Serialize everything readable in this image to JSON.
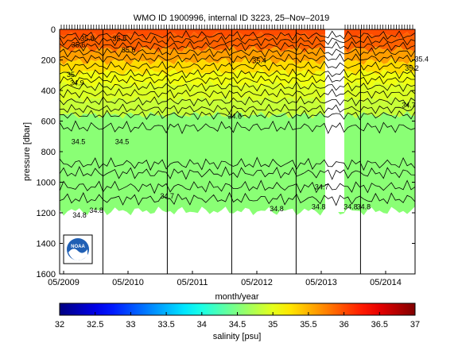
{
  "chart_data": {
    "type": "heatmap",
    "title": "WMO ID 1900996, internal ID 3223, 25–Nov–2019",
    "xlabel": "month/year",
    "ylabel": "pressure [dbar]",
    "x_ticks": [
      "05/2009",
      "05/2010",
      "05/2011",
      "05/2012",
      "05/2013",
      "05/2014"
    ],
    "y_ticks": [
      0,
      200,
      400,
      600,
      800,
      1000,
      1200,
      1400,
      1600
    ],
    "ylim": [
      0,
      1600
    ],
    "y_reversed": true,
    "colorbar": {
      "label": "salinity [psu]",
      "range": [
        32,
        37
      ],
      "ticks": [
        32,
        32.5,
        33,
        33.5,
        34,
        34.5,
        35,
        35.5,
        36,
        36.5,
        37
      ]
    },
    "salinity_layers": [
      {
        "pmin": 0,
        "pmax": 40,
        "value": 36.0
      },
      {
        "pmin": 40,
        "pmax": 130,
        "value": 35.9
      },
      {
        "pmin": 130,
        "pmax": 210,
        "value": 35.6
      },
      {
        "pmin": 210,
        "pmax": 280,
        "value": 35.3
      },
      {
        "pmin": 280,
        "pmax": 360,
        "value": 35.05
      },
      {
        "pmin": 360,
        "pmax": 460,
        "value": 34.95
      },
      {
        "pmin": 460,
        "pmax": 560,
        "value": 34.85
      },
      {
        "pmin": 560,
        "pmax": 1230,
        "value": 34.55
      }
    ],
    "contour_labels": [
      {
        "text": "35.8",
        "x": 0.26,
        "p": 60
      },
      {
        "text": "35.8",
        "x": 0.76,
        "p": 60
      },
      {
        "text": "35.6",
        "x": 0.12,
        "p": 100
      },
      {
        "text": "35.6",
        "x": 0.9,
        "p": 135
      },
      {
        "text": "35.4",
        "x": 2.93,
        "p": 205
      },
      {
        "text": "35.4",
        "x": 5.45,
        "p": 195
      },
      {
        "text": "35.2",
        "x": 5.3,
        "p": 255
      },
      {
        "text": "35",
        "x": 0.05,
        "p": 295
      },
      {
        "text": "34.9",
        "x": 0.1,
        "p": 350
      },
      {
        "text": "34.7",
        "x": 5.25,
        "p": 495
      },
      {
        "text": "34.6",
        "x": 2.55,
        "p": 570
      },
      {
        "text": "34.5",
        "x": 0.12,
        "p": 735
      },
      {
        "text": "34.5",
        "x": 0.8,
        "p": 735
      },
      {
        "text": "34.7",
        "x": 1.5,
        "p": 1090
      },
      {
        "text": "34.7",
        "x": 3.9,
        "p": 1030
      },
      {
        "text": "34.8",
        "x": 0.14,
        "p": 1215
      },
      {
        "text": "34.8",
        "x": 0.4,
        "p": 1185
      },
      {
        "text": "34.8",
        "x": 3.2,
        "p": 1175
      },
      {
        "text": "34.8",
        "x": 3.85,
        "p": 1160
      },
      {
        "text": "34.8",
        "x": 4.35,
        "p": 1160
      },
      {
        "text": "34.8",
        "x": 4.55,
        "p": 1160
      }
    ],
    "grid": false
  },
  "logo": {
    "text": "NOAA"
  }
}
